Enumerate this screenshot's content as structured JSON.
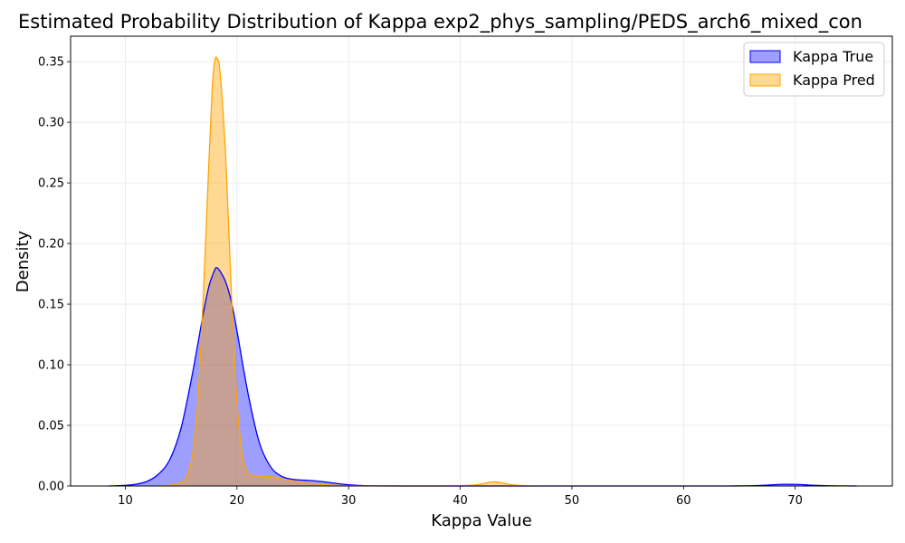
{
  "chart_data": {
    "type": "area",
    "title": "Estimated Probability Distribution of Kappa exp2_phys_sampling/PEDS_arch6_mixed_con",
    "xlabel": "Kappa Value",
    "ylabel": "Density",
    "xlim": [
      5.1,
      78.7
    ],
    "ylim": [
      0,
      0.371
    ],
    "x_ticks": [
      10,
      20,
      30,
      40,
      50,
      60,
      70
    ],
    "x_tick_labels": [
      "10",
      "20",
      "30",
      "40",
      "50",
      "60",
      "70"
    ],
    "y_ticks": [
      0.0,
      0.05,
      0.1,
      0.15,
      0.2,
      0.25,
      0.3,
      0.35
    ],
    "y_tick_labels": [
      "0.00",
      "0.05",
      "0.10",
      "0.15",
      "0.20",
      "0.25",
      "0.30",
      "0.35"
    ],
    "grid": true,
    "legend_position": "top-right",
    "series": [
      {
        "name": "Kappa True",
        "color": "#0000ff",
        "fill_opacity": 0.38,
        "x": [
          8.5,
          10,
          11,
          12,
          13,
          14,
          15,
          16,
          17,
          17.5,
          18,
          18.2,
          18.5,
          19,
          19.5,
          20,
          21,
          22,
          23,
          24,
          25,
          26,
          27,
          28,
          29,
          30,
          31,
          32,
          35,
          40,
          45,
          50,
          55,
          60,
          62,
          64,
          66,
          67,
          68,
          69,
          70,
          71,
          72,
          74,
          75.5
        ],
        "y": [
          0.0,
          0.0005,
          0.0015,
          0.004,
          0.01,
          0.022,
          0.048,
          0.092,
          0.143,
          0.165,
          0.178,
          0.18,
          0.177,
          0.168,
          0.152,
          0.128,
          0.076,
          0.036,
          0.016,
          0.008,
          0.0055,
          0.0048,
          0.0042,
          0.0032,
          0.002,
          0.001,
          0.0004,
          0.0001,
          0.0,
          0.0,
          0.0,
          0.0,
          0.0,
          0.0,
          0.0,
          0.0,
          0.0002,
          0.0005,
          0.001,
          0.0014,
          0.0013,
          0.0009,
          0.0004,
          0.0001,
          0.0
        ]
      },
      {
        "name": "Kappa Pred",
        "color": "#ffa500",
        "fill_opacity": 0.42,
        "x": [
          13,
          14,
          15,
          15.5,
          16,
          16.5,
          17,
          17.5,
          17.8,
          18,
          18.2,
          18.5,
          19,
          19.5,
          20,
          20.5,
          21,
          21.5,
          22,
          23,
          24,
          25,
          26,
          27,
          28,
          29,
          30,
          32,
          35,
          38,
          40,
          41,
          42,
          42.5,
          43,
          43.5,
          44,
          45,
          46,
          46.5
        ],
        "y": [
          0.0,
          0.0005,
          0.003,
          0.008,
          0.025,
          0.07,
          0.16,
          0.27,
          0.33,
          0.35,
          0.353,
          0.34,
          0.27,
          0.16,
          0.07,
          0.025,
          0.011,
          0.0085,
          0.0082,
          0.0075,
          0.006,
          0.004,
          0.0028,
          0.0018,
          0.001,
          0.0005,
          0.0002,
          0.0001,
          0.0,
          0.0,
          0.0002,
          0.0006,
          0.0018,
          0.0028,
          0.0034,
          0.003,
          0.002,
          0.0006,
          0.0001,
          0.0
        ]
      }
    ]
  }
}
